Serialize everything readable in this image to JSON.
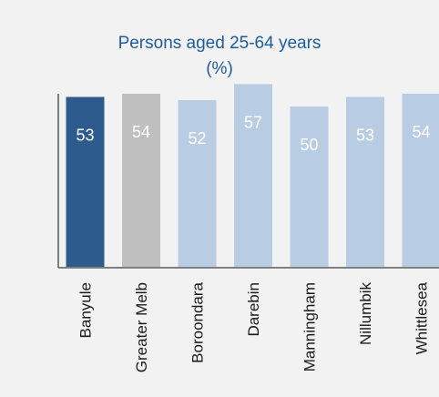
{
  "chart_data": {
    "type": "bar",
    "title": [
      "Persons aged 25-64 years",
      "(%)"
    ],
    "categories": [
      "Banyule",
      "Greater Melb",
      "Boroondara",
      "Darebin",
      "Manningham",
      "Nillumbik",
      "Whittlesea"
    ],
    "values": [
      53,
      54,
      52,
      57,
      50,
      53,
      54
    ],
    "data_labels": [
      "53",
      "54",
      "52",
      "57",
      "50",
      "53",
      "54"
    ],
    "ylim": [
      0,
      60
    ],
    "grid": false,
    "legend": "none",
    "bar_colors": [
      "#2e5b8e",
      "#bfbfbf",
      "#b8cce4",
      "#b8cce4",
      "#b8cce4",
      "#b8cce4",
      "#b8cce4"
    ],
    "title_color": "#1f5c99",
    "axis_color": "#595959"
  }
}
